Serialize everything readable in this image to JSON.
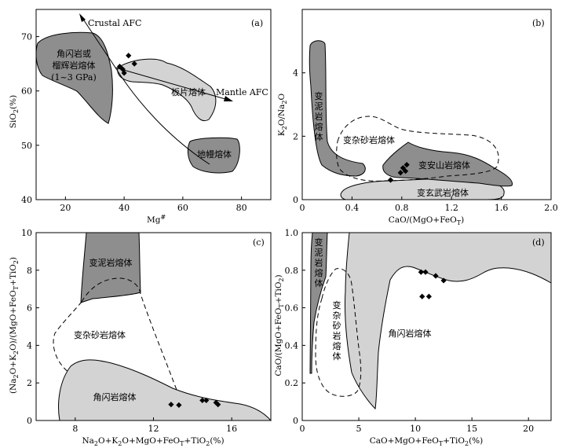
{
  "chart_data": [
    {
      "type": "scatter",
      "panel_label": "(a)",
      "xlabel": "Mg#",
      "ylabel": "SiO2(%)",
      "xlim": [
        10,
        90
      ],
      "ylim": [
        40,
        75
      ],
      "xticks": [
        "20",
        "40",
        "60",
        "80"
      ],
      "yticks": [
        "40",
        "50",
        "60",
        "70"
      ],
      "points": [
        {
          "x": 38.5,
          "y": 64.5
        },
        {
          "x": 39.5,
          "y": 64.0
        },
        {
          "x": 40.0,
          "y": 63.3
        },
        {
          "x": 41.5,
          "y": 66.5
        },
        {
          "x": 43.5,
          "y": 65.0
        }
      ],
      "fields": [
        {
          "label_lines": [
            "角闪岩或",
            "榴辉岩熔体",
            "(1~3 GPa)"
          ],
          "fill": "#8e8e8e"
        },
        {
          "label_lines": [
            "板片熔体"
          ],
          "fill": "#d3d3d3"
        },
        {
          "label_lines": [
            "地幔熔体"
          ],
          "fill": "#8e8e8e"
        }
      ],
      "annotations": [
        "Crustal AFC",
        "Mantle AFC"
      ]
    },
    {
      "type": "scatter",
      "panel_label": "(b)",
      "xlabel": "CaO/(MgO+FeOT)",
      "ylabel": "K2O/Na2O",
      "xlim": [
        0,
        2.0
      ],
      "ylim": [
        0,
        6
      ],
      "xticks": [
        "0",
        "0.4",
        "0.8",
        "1.2",
        "1.6",
        "2.0"
      ],
      "yticks": [
        "0",
        "2",
        "4"
      ],
      "points": [
        {
          "x": 0.71,
          "y": 0.62
        },
        {
          "x": 0.79,
          "y": 0.85
        },
        {
          "x": 0.81,
          "y": 1.0
        },
        {
          "x": 0.83,
          "y": 0.9
        },
        {
          "x": 0.84,
          "y": 1.1
        }
      ],
      "fields": [
        {
          "label_lines": [
            "变泥岩熔体"
          ],
          "fill": "#8e8e8e"
        },
        {
          "label_lines": [
            "变杂砂岩熔体"
          ],
          "fill": "none"
        },
        {
          "label_lines": [
            "变安山岩熔体"
          ],
          "fill": "#8e8e8e"
        },
        {
          "label_lines": [
            "变玄武岩熔体"
          ],
          "fill": "#d3d3d3"
        }
      ]
    },
    {
      "type": "scatter",
      "panel_label": "(c)",
      "xlabel": "Na2O+K2O+MgO+FeOT+TiO2(%)",
      "ylabel": "(Na2O+K2O)/(MgO+FeOT+TiO2)",
      "xlim": [
        6,
        18
      ],
      "ylim": [
        0,
        10
      ],
      "xticks": [
        "8",
        "12",
        "16"
      ],
      "yticks": [
        "0",
        "2",
        "4",
        "6",
        "8",
        "10"
      ],
      "points": [
        {
          "x": 12.9,
          "y": 0.85
        },
        {
          "x": 13.3,
          "y": 0.82
        },
        {
          "x": 14.5,
          "y": 1.07
        },
        {
          "x": 14.7,
          "y": 1.07
        },
        {
          "x": 15.2,
          "y": 0.95
        },
        {
          "x": 15.3,
          "y": 0.85
        }
      ],
      "fields": [
        {
          "label_lines": [
            "变泥岩熔体"
          ],
          "fill": "#8e8e8e"
        },
        {
          "label_lines": [
            "变杂砂岩熔体"
          ],
          "fill": "none"
        },
        {
          "label_lines": [
            "角闪岩熔体"
          ],
          "fill": "#d3d3d3"
        }
      ]
    },
    {
      "type": "scatter",
      "panel_label": "(d)",
      "xlabel": "CaO+MgO+FeOT+TiO2(%)",
      "ylabel": "CaO/(MgO+FeOT+TiO2)",
      "xlim": [
        0,
        22
      ],
      "ylim": [
        0,
        1.0
      ],
      "xticks": [
        "0",
        "5",
        "10",
        "15",
        "20"
      ],
      "yticks": [
        "0",
        "0.2",
        "0.4",
        "0.6",
        "0.8",
        "1.0"
      ],
      "points": [
        {
          "x": 10.5,
          "y": 0.79
        },
        {
          "x": 10.9,
          "y": 0.79
        },
        {
          "x": 11.8,
          "y": 0.77
        },
        {
          "x": 12.5,
          "y": 0.745
        },
        {
          "x": 10.6,
          "y": 0.66
        },
        {
          "x": 11.2,
          "y": 0.66
        }
      ],
      "fields": [
        {
          "label_lines": [
            "变泥岩熔体"
          ],
          "fill": "#8e8e8e"
        },
        {
          "label_lines": [
            "变杂砂岩熔体"
          ],
          "fill": "none"
        },
        {
          "label_lines": [
            "角闪岩熔体"
          ],
          "fill": "#d3d3d3"
        }
      ]
    }
  ]
}
